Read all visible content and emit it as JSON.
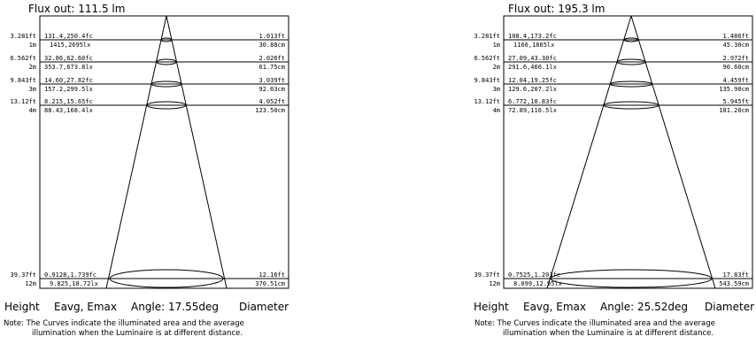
{
  "panels": [
    {
      "flux_label": "Flux out: 111.5 lm",
      "rows": [
        {
          "left": "3.281ft",
          "mid": "131.4,250.4fc",
          "right": "1.013ft"
        },
        {
          "left": "1m",
          "mid": "1415,2695lx",
          "right": "30.88cm"
        },
        {
          "left": "6.562ft",
          "mid": "32.86,62.60fc",
          "right": "2.026ft"
        },
        {
          "left": "2m",
          "mid": "353.7,673.8lx",
          "right": "61.75cm"
        },
        {
          "left": "9.843ft",
          "mid": "14.60,27.82fc",
          "right": "3.039ft"
        },
        {
          "left": "3m",
          "mid": "157.2,299.5lx",
          "right": "92.63cm"
        },
        {
          "left": "13.12ft",
          "mid": "8.215,15.65fc",
          "right": "4.052ft"
        },
        {
          "left": "4m",
          "mid": "88.43,168.4lx",
          "right": "123.50cm"
        },
        {
          "left": "39.37ft",
          "mid": "0.9128,1.739fc",
          "right": "12.16ft"
        },
        {
          "left": "12m",
          "mid": "9.825,18.72lx",
          "right": "370.51cm"
        }
      ],
      "footer": {
        "height": "Height",
        "eavg": "Eavg, Emax",
        "angle": "Angle: 17.55deg",
        "diameter": "Diameter"
      },
      "note_line1": "Note: The Curves indicate the illuminated area and the average",
      "note_line2": "illumination when the Luminaire is at different distance."
    },
    {
      "flux_label": "Flux out: 195.3 lm",
      "rows": [
        {
          "left": "3.281ft",
          "mid": "108.4,173.2fc",
          "right": "1.486ft"
        },
        {
          "left": "1m",
          "mid": "1166,1865lx",
          "right": "45.30cm"
        },
        {
          "left": "6.562ft",
          "mid": "27.09,43.30fc",
          "right": "2.972ft"
        },
        {
          "left": "2m",
          "mid": "291.6,466.1lx",
          "right": "90.60cm"
        },
        {
          "left": "9.843ft",
          "mid": "12.04,19.25fc",
          "right": "4.459ft"
        },
        {
          "left": "3m",
          "mid": "129.6,207.2lx",
          "right": "135.90cm"
        },
        {
          "left": "13.12ft",
          "mid": "6.772,10.83fc",
          "right": "5.945ft"
        },
        {
          "left": "4m",
          "mid": "72.89,116.5lx",
          "right": "181.20cm"
        },
        {
          "left": "39.37ft",
          "mid": "0.7525,1.203fc",
          "right": "17.83ft"
        },
        {
          "left": "12m",
          "mid": "8.099,12.95lx",
          "right": "543.59cm"
        }
      ],
      "footer": {
        "height": "Height",
        "eavg": "Eavg, Emax",
        "angle": "Angle: 25.52deg",
        "diameter": "Diameter"
      },
      "note_line1": "Note: The Curves indicate the illuminated area and the average",
      "note_line2": "illumination when the Luminaire is at different distance."
    }
  ]
}
